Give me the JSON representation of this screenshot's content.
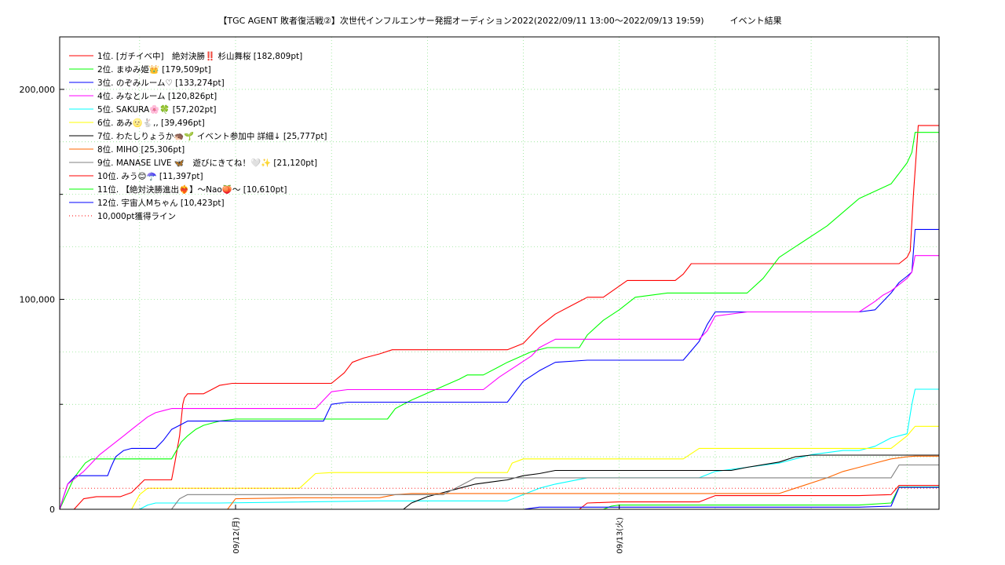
{
  "chart_data": {
    "type": "line",
    "title": "【TGC AGENT 敗者復活戦②】次世代インフルエンサー発掘オーディション2022(2022/09/11 13:00〜2022/09/13 19:59)　　　イベント結果",
    "xlabel": "",
    "ylabel": "",
    "x_unit": "hours since 2022/09/11 13:00",
    "xlim": [
      0,
      55
    ],
    "ylim": [
      0,
      225000
    ],
    "x_ticks": [
      {
        "x": 11,
        "label": "09/12(月)"
      },
      {
        "x": 35,
        "label": "09/13(火)"
      }
    ],
    "y_ticks": [
      {
        "y": 0,
        "label": "0"
      },
      {
        "y": 100000,
        "label": "100,000"
      },
      {
        "y": 200000,
        "label": "200,000"
      }
    ],
    "grid": true,
    "legend_position": "top-left",
    "series": [
      {
        "name": "1位. [ガチイベ中]　絶対決勝‼️ 杉山舞桜 [182,809pt]",
        "color": "#ff0000",
        "x": [
          0,
          0.9,
          1.5,
          2.3,
          3.8,
          4.5,
          5.3,
          6.0,
          7.0,
          7.2,
          7.5,
          7.7,
          7.8,
          8.0,
          9.0,
          9.5,
          10.0,
          10.8,
          11.5,
          15.0,
          17.0,
          17.8,
          18.3,
          19.0,
          20.0,
          20.8,
          25.0,
          28.0,
          29.0,
          30.0,
          31.0,
          32.0,
          33.0,
          34.0,
          35.5,
          36.5,
          38.5,
          39.0,
          39.5,
          40.5,
          43.0,
          46.0,
          52.5,
          53.0,
          53.2,
          53.4,
          53.6,
          53.7,
          54.0,
          55.0
        ],
        "y": [
          0,
          0,
          5000,
          6000,
          6000,
          8000,
          14000,
          14000,
          14000,
          22000,
          35000,
          50000,
          53000,
          55000,
          55000,
          57000,
          59000,
          60000,
          60000,
          60000,
          60000,
          65000,
          70000,
          72000,
          74000,
          76000,
          76000,
          76000,
          79000,
          87000,
          93000,
          97000,
          101000,
          101000,
          109000,
          109000,
          109000,
          112000,
          117000,
          117000,
          117000,
          117000,
          117000,
          120000,
          123000,
          150000,
          172000,
          182809,
          182809,
          182809
        ]
      },
      {
        "name": "2位. まゆみ姫👑 [179,509pt]",
        "color": "#00ff00",
        "x": [
          0,
          0.3,
          0.6,
          0.9,
          1.2,
          1.6,
          2.0,
          3.0,
          4.0,
          5.0,
          6.0,
          6.5,
          7.0,
          7.3,
          7.6,
          8.0,
          8.5,
          9.0,
          10.0,
          11.0,
          13.0,
          15.0,
          16.0,
          17.0,
          18.0,
          20.5,
          21.0,
          22.0,
          23.5,
          25.0,
          25.5,
          26.5,
          28.0,
          29.5,
          30.5,
          31.0,
          32.5,
          33.0,
          34.0,
          35.0,
          36.0,
          38.0,
          41.0,
          42.0,
          43.0,
          44.0,
          45.0,
          46.0,
          48.0,
          50.0,
          52.0,
          52.5,
          53.0,
          53.3,
          53.5,
          55.0
        ],
        "y": [
          0,
          5000,
          10000,
          15000,
          18000,
          22000,
          24000,
          24000,
          24000,
          24000,
          24000,
          24000,
          24000,
          28000,
          32000,
          35000,
          38000,
          40000,
          42000,
          43000,
          43000,
          43000,
          43000,
          43000,
          43000,
          43000,
          48000,
          52000,
          57000,
          62000,
          64000,
          64000,
          70000,
          75000,
          77000,
          77000,
          77000,
          83000,
          90000,
          95000,
          101000,
          103000,
          103000,
          103000,
          103000,
          110000,
          120000,
          125000,
          135000,
          148000,
          155000,
          160000,
          165000,
          170000,
          179509,
          179509
        ]
      },
      {
        "name": "3位. のぞみルーム♡ [133,274pt]",
        "color": "#0000ff",
        "x": [
          0,
          0.2,
          0.5,
          1.0,
          1.5,
          2.0,
          3.0,
          3.2,
          3.5,
          4.0,
          4.5,
          5.0,
          5.5,
          6.0,
          6.5,
          7.0,
          7.5,
          8.0,
          9.0,
          10.0,
          11.0,
          14.0,
          16.5,
          17.0,
          18.0,
          20.0,
          25.0,
          27.0,
          28.0,
          29.0,
          30.0,
          31.0,
          33.0,
          35.0,
          36.0,
          38.0,
          39.0,
          40.0,
          40.5,
          41.0,
          43.0,
          46.0,
          48.0,
          49.0,
          49.5,
          50.0,
          51.0,
          52.0,
          52.5,
          53.0,
          53.3,
          53.5,
          55.0
        ],
        "y": [
          0,
          5000,
          12000,
          16000,
          16000,
          16000,
          16000,
          20000,
          25000,
          28000,
          29000,
          29000,
          29000,
          29000,
          33000,
          38000,
          40000,
          42000,
          42000,
          42000,
          42000,
          42000,
          42000,
          50000,
          51000,
          51000,
          51000,
          51000,
          51000,
          61000,
          66000,
          70000,
          71000,
          71000,
          71000,
          71000,
          71000,
          80000,
          88000,
          94000,
          94000,
          94000,
          94000,
          94000,
          94000,
          94000,
          95000,
          103000,
          108000,
          111000,
          113000,
          133274,
          133274
        ]
      },
      {
        "name": "4位. みなとルーム [120,826pt]",
        "color": "#ff00ff",
        "x": [
          0,
          0.2,
          0.5,
          1.0,
          1.5,
          2.0,
          2.5,
          3.0,
          3.5,
          4.0,
          4.5,
          5.0,
          5.5,
          6.0,
          6.5,
          7.0,
          10.0,
          16.0,
          16.5,
          17.0,
          18.0,
          20.0,
          25.0,
          26.5,
          27.5,
          28.5,
          29.5,
          30.0,
          31.0,
          33.0,
          35.0,
          38.0,
          40.0,
          40.5,
          41.0,
          43.0,
          46.0,
          48.0,
          50.0,
          51.0,
          51.5,
          52.0,
          52.5,
          53.0,
          53.3,
          53.5,
          55.0
        ],
        "y": [
          0,
          5000,
          12000,
          15000,
          18000,
          22000,
          26000,
          29000,
          32000,
          35000,
          38000,
          41000,
          44000,
          46000,
          47000,
          48000,
          48000,
          48000,
          52000,
          56000,
          57000,
          57000,
          57000,
          57000,
          63000,
          68000,
          73000,
          77000,
          81000,
          81000,
          81000,
          81000,
          81000,
          85000,
          92000,
          94000,
          94000,
          94000,
          94000,
          99000,
          102000,
          104000,
          107000,
          110000,
          113000,
          120826,
          120826
        ]
      },
      {
        "name": "5位. SAKURA🌸🍀 [57,202pt]",
        "color": "#00ffff",
        "x": [
          0,
          5.0,
          5.5,
          6.0,
          10.0,
          20.0,
          28.0,
          29.0,
          30.0,
          31.0,
          33.0,
          38.0,
          40.0,
          41.0,
          43.0,
          45.0,
          47.0,
          49.0,
          50.0,
          51.0,
          52.0,
          53.0,
          53.3,
          53.5,
          55.0
        ],
        "y": [
          0,
          0,
          2000,
          3000,
          3000,
          4000,
          4000,
          7000,
          10000,
          12000,
          15000,
          15000,
          15000,
          18000,
          20000,
          22000,
          26000,
          28000,
          28000,
          30000,
          34000,
          36000,
          50000,
          57202,
          57202
        ]
      },
      {
        "name": "6位. あみ🌝🐇,, [39,496pt]",
        "color": "#ffff00",
        "x": [
          0,
          4.5,
          5.0,
          5.5,
          8.0,
          15.0,
          16.0,
          17.0,
          20.0,
          25.0,
          28.0,
          28.3,
          29.0,
          33.0,
          36.0,
          39.0,
          40.0,
          43.0,
          46.0,
          50.0,
          52.0,
          53.0,
          53.5,
          55.0
        ],
        "y": [
          0,
          0,
          7000,
          10000,
          10000,
          10000,
          17000,
          17500,
          17500,
          17500,
          17500,
          22000,
          24000,
          24000,
          24000,
          24000,
          29000,
          29000,
          29000,
          29000,
          29000,
          35000,
          39496,
          39496
        ]
      },
      {
        "name": "7位. わたしりょうか🦔🌱 イベント参加中 詳細↓ [25,777pt]",
        "color": "#000000",
        "x": [
          0,
          21.5,
          22.0,
          23.0,
          24.0,
          25.0,
          26.0,
          27.0,
          28.0,
          29.0,
          30.0,
          31.0,
          33.0,
          38.0,
          42.0,
          43.0,
          45.0,
          46.0,
          47.0,
          50.0,
          52.0,
          55.0
        ],
        "y": [
          0,
          0,
          3000,
          6000,
          8000,
          10000,
          12000,
          13000,
          14000,
          16000,
          17000,
          18500,
          18500,
          18500,
          18500,
          20000,
          22500,
          25000,
          25777,
          25777,
          25777,
          25777
        ]
      },
      {
        "name": "8位. MIHO [25,306pt]",
        "color": "#ff6600",
        "x": [
          0,
          10.5,
          11.0,
          15.0,
          20.0,
          21.0,
          22.0,
          25.0,
          30.0,
          35.0,
          40.0,
          45.0,
          46.0,
          48.0,
          49.0,
          50.0,
          51.0,
          52.0,
          53.0,
          53.5,
          55.0
        ],
        "y": [
          0,
          0,
          5000,
          5500,
          5500,
          7000,
          7500,
          7500,
          7500,
          7500,
          7500,
          7500,
          10000,
          15000,
          18000,
          20000,
          22000,
          24000,
          25000,
          25306,
          25306
        ]
      },
      {
        "name": "9位. MANASE LIVE 🦋　遊びにきてね！🤍✨ [21,120pt]",
        "color": "#808080",
        "x": [
          0,
          7.0,
          7.5,
          8.0,
          10.0,
          15.0,
          20.0,
          24.0,
          25.0,
          26.0,
          30.0,
          35.0,
          40.0,
          45.0,
          50.0,
          52.0,
          52.5,
          55.0
        ],
        "y": [
          0,
          0,
          5000,
          7000,
          7000,
          7000,
          7000,
          7000,
          11000,
          15000,
          15000,
          15000,
          15000,
          15000,
          15000,
          15000,
          21120,
          21120
        ]
      },
      {
        "name": "10位. みう😊☂️ [11,397pt]",
        "color": "#ff0000",
        "x": [
          0,
          32.5,
          33.0,
          35.0,
          40.0,
          41.0,
          45.0,
          50.0,
          52.0,
          52.5,
          55.0
        ],
        "y": [
          0,
          0,
          3000,
          3500,
          3500,
          6500,
          6500,
          6500,
          7000,
          11397,
          11397
        ]
      },
      {
        "name": "11位. 【絶対決勝進出❤️‍🔥】〜Nao🍑〜 [10,610pt]",
        "color": "#00ff00",
        "x": [
          0,
          34.0,
          34.5,
          35.0,
          40.0,
          45.0,
          50.0,
          52.0,
          52.5,
          55.0
        ],
        "y": [
          0,
          0,
          1500,
          2000,
          2000,
          2000,
          2000,
          3000,
          10610,
          10610
        ]
      },
      {
        "name": "12位. 宇宙人Mちゃん [10,423pt]",
        "color": "#0000ff",
        "x": [
          0,
          29.0,
          29.5,
          30.0,
          35.0,
          40.0,
          45.0,
          50.0,
          52.0,
          52.5,
          55.0
        ],
        "y": [
          0,
          0,
          500,
          1000,
          1000,
          1000,
          1000,
          1000,
          1500,
          10423,
          10423
        ]
      },
      {
        "name": "10,000pt獲得ライン",
        "color": "#ff0000",
        "dash": true,
        "x": [
          0,
          55
        ],
        "y": [
          10000,
          10000
        ]
      }
    ]
  }
}
